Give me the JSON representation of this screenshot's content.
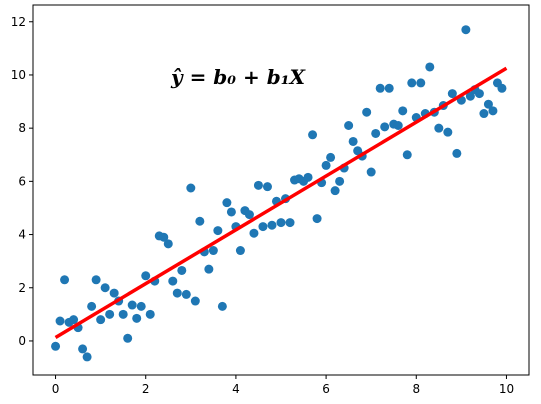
{
  "chart_data": {
    "type": "scatter",
    "annotation": "ŷ = b₀ + b₁X",
    "series": [
      {
        "color": "#1f77b4",
        "x": [
          0,
          0.1,
          0.2,
          0.3,
          0.4,
          0.5,
          0.6,
          0.7,
          0.8,
          0.9,
          1.0,
          1.1,
          1.2,
          1.3,
          1.4,
          1.5,
          1.6,
          1.7,
          1.8,
          1.9,
          2.0,
          2.1,
          2.2,
          2.3,
          2.4,
          2.5,
          2.6,
          2.7,
          2.8,
          2.9,
          3.0,
          3.1,
          3.2,
          3.3,
          3.4,
          3.5,
          3.6,
          3.7,
          3.8,
          3.9,
          4.0,
          4.1,
          4.2,
          4.3,
          4.4,
          4.5,
          4.6,
          4.7,
          4.8,
          4.9,
          5.0,
          5.1,
          5.2,
          5.3,
          5.4,
          5.5,
          5.6,
          5.7,
          5.8,
          5.9,
          6.0,
          6.1,
          6.2,
          6.3,
          6.4,
          6.5,
          6.6,
          6.7,
          6.8,
          6.9,
          7.0,
          7.1,
          7.2,
          7.3,
          7.4,
          7.5,
          7.6,
          7.7,
          7.8,
          7.9,
          8.0,
          8.1,
          8.2,
          8.3,
          8.4,
          8.5,
          8.6,
          8.7,
          8.8,
          8.9,
          9.0,
          9.1,
          9.2,
          9.3,
          9.4,
          9.5,
          9.6,
          9.7,
          9.8,
          9.9
        ],
        "values": [
          -0.2,
          0.75,
          2.3,
          0.7,
          0.8,
          0.5,
          -0.3,
          -0.6,
          1.3,
          2.3,
          0.8,
          2.0,
          1.0,
          1.8,
          1.5,
          1.0,
          0.1,
          1.35,
          0.85,
          1.3,
          2.45,
          1.0,
          2.25,
          3.95,
          3.9,
          3.65,
          2.25,
          1.8,
          2.65,
          1.75,
          5.75,
          1.5,
          4.5,
          3.35,
          2.7,
          3.4,
          4.15,
          1.3,
          5.2,
          4.85,
          4.3,
          3.4,
          4.9,
          4.75,
          4.05,
          5.85,
          4.3,
          5.8,
          4.35,
          5.25,
          4.45,
          5.35,
          4.45,
          6.05,
          6.1,
          6.0,
          6.15,
          7.75,
          4.6,
          5.95,
          6.6,
          6.9,
          5.65,
          6.0,
          6.5,
          8.1,
          7.5,
          7.15,
          6.95,
          8.6,
          6.35,
          7.8,
          9.5,
          8.05,
          9.5,
          8.15,
          8.1,
          8.65,
          7.0,
          9.7,
          8.4,
          9.7,
          8.55,
          10.3,
          8.6,
          8.0,
          8.85,
          7.85,
          9.3,
          7.05,
          9.05,
          11.7,
          9.2,
          9.45,
          9.3,
          8.55,
          8.9,
          8.65,
          9.7,
          9.5
        ]
      },
      {
        "type": "line",
        "color": "#ff0000",
        "x": [
          0,
          10
        ],
        "values": [
          0.13,
          10.25
        ]
      }
    ],
    "xlim": [
      -0.5,
      10.5
    ],
    "ylim": [
      -1.28,
      12.63
    ],
    "xticks": [
      0,
      2,
      4,
      6,
      8,
      10
    ],
    "yticks": [
      0,
      2,
      4,
      6,
      8,
      10,
      12
    ]
  }
}
